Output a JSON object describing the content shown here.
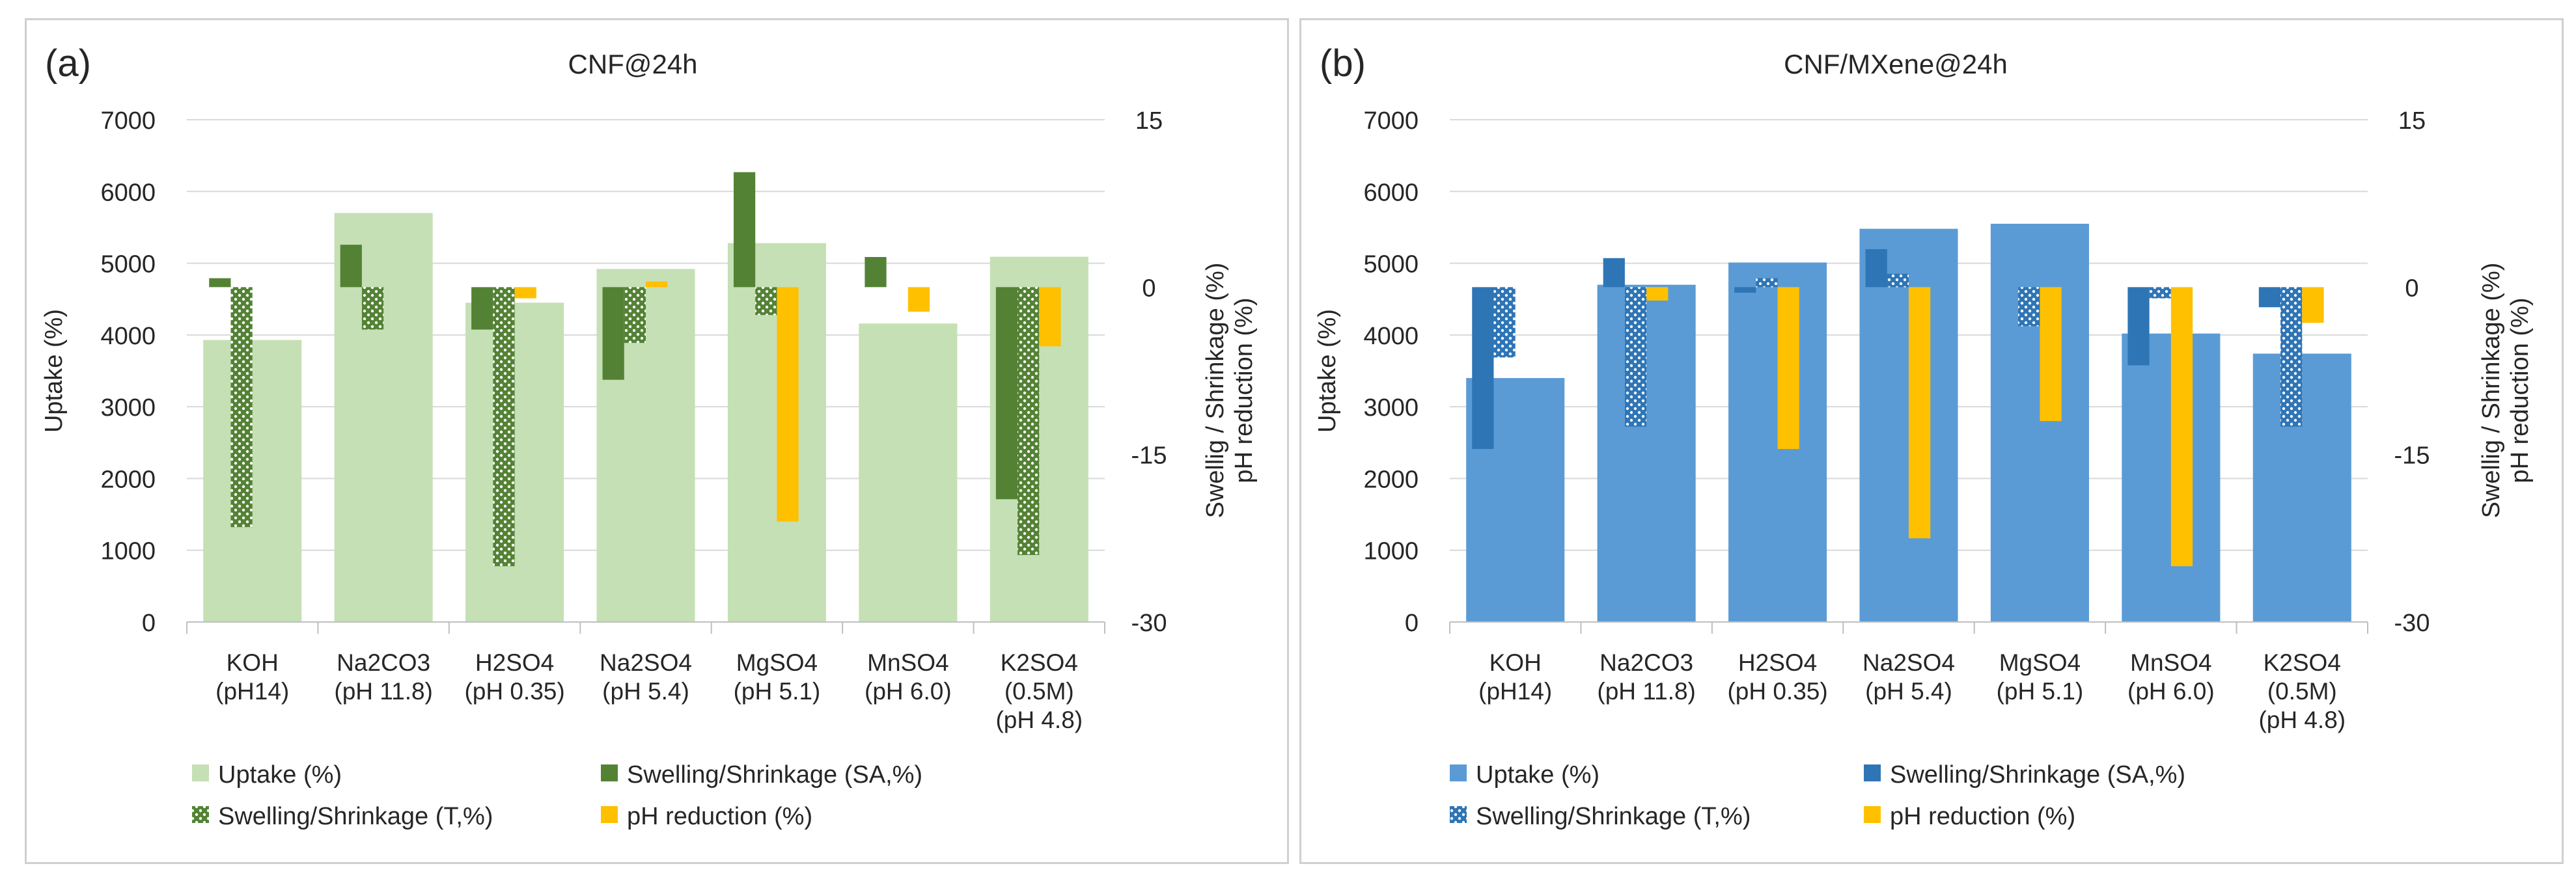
{
  "chart_data": [
    {
      "type": "bar",
      "panel_label": "(a)",
      "title": "CNF@24h",
      "ylabel": "Uptake (%)",
      "y2label_lines": [
        "Swellig / Shrinkage (%)",
        "pH reduction (%)"
      ],
      "ylim": [
        0,
        7000
      ],
      "yticks": [
        0,
        1000,
        2000,
        3000,
        4000,
        5000,
        6000,
        7000
      ],
      "y2lim": [
        -30,
        15
      ],
      "y2ticks": [
        -30,
        -15,
        0,
        15
      ],
      "categories": [
        [
          "KOH",
          "(pH14)"
        ],
        [
          "Na2CO3",
          "(pH 11.8)"
        ],
        [
          "H2SO4",
          "(pH 0.35)"
        ],
        [
          "Na2SO4",
          "(pH 5.4)"
        ],
        [
          "MgSO4",
          "(pH 5.1)"
        ],
        [
          "MnSO4",
          "(pH 6.0)"
        ],
        [
          "K2SO4",
          "(0.5M)",
          "(pH 4.8)"
        ]
      ],
      "series": [
        {
          "name": "Uptake (%)",
          "axis": "primary",
          "style": "solid",
          "color": "#c5e0b4",
          "values": [
            3930,
            5700,
            4450,
            4920,
            5280,
            4160,
            5090
          ]
        },
        {
          "name": "Swelling/Shrinkage (SA,%)",
          "axis": "secondary",
          "style": "solid",
          "color": "#548235",
          "values": [
            0.8,
            3.8,
            -3.8,
            -8.3,
            10.3,
            2.7,
            -19
          ]
        },
        {
          "name": "Swelling/Shrinkage (T,%)",
          "axis": "secondary",
          "style": "pattern",
          "color": "#548235",
          "values": [
            -21.5,
            -3.8,
            -25,
            -5,
            -2.5,
            null,
            -24
          ]
        },
        {
          "name": "pH reduction (%)",
          "axis": "secondary",
          "style": "solid",
          "color": "#ffc000",
          "values": [
            null,
            null,
            -1,
            0.5,
            -21,
            -2.2,
            -5.3
          ]
        }
      ],
      "legend": [
        "Uptake (%)",
        "Swelling/Shrinkage (SA,%)",
        "Swelling/Shrinkage (T,%)",
        "pH reduction (%)"
      ]
    },
    {
      "type": "bar",
      "panel_label": "(b)",
      "title": "CNF/MXene@24h",
      "ylabel": "Uptake (%)",
      "y2label_lines": [
        "Swellig / Shrinkage (%)",
        "pH reduction (%)"
      ],
      "ylim": [
        0,
        7000
      ],
      "yticks": [
        0,
        1000,
        2000,
        3000,
        4000,
        5000,
        6000,
        7000
      ],
      "y2lim": [
        -30,
        15
      ],
      "y2ticks": [
        -30,
        -15,
        0,
        15
      ],
      "categories": [
        [
          "KOH",
          "(pH14)"
        ],
        [
          "Na2CO3",
          "(pH 11.8)"
        ],
        [
          "H2SO4",
          "(pH 0.35)"
        ],
        [
          "Na2SO4",
          "(pH 5.4)"
        ],
        [
          "MgSO4",
          "(pH 5.1)"
        ],
        [
          "MnSO4",
          "(pH 6.0)"
        ],
        [
          "K2SO4",
          "(0.5M)",
          "(pH 4.8)"
        ]
      ],
      "series": [
        {
          "name": "Uptake (%)",
          "axis": "primary",
          "style": "solid",
          "color": "#5b9bd5",
          "values": [
            3400,
            4700,
            5010,
            5480,
            5550,
            4020,
            3740
          ]
        },
        {
          "name": "Swelling/Shrinkage (SA,%)",
          "axis": "secondary",
          "style": "solid",
          "color": "#2e75b6",
          "values": [
            -14.5,
            2.6,
            -0.5,
            3.4,
            null,
            -7,
            -1.8
          ]
        },
        {
          "name": "Swelling/Shrinkage (T,%)",
          "axis": "secondary",
          "style": "pattern",
          "color": "#2e75b6",
          "values": [
            -6.3,
            -12.5,
            0.8,
            1.2,
            -3.5,
            -1,
            -12.5
          ]
        },
        {
          "name": "pH reduction (%)",
          "axis": "secondary",
          "style": "solid",
          "color": "#ffc000",
          "values": [
            null,
            -1.2,
            -14.5,
            -22.5,
            -12,
            -25,
            -3.2
          ]
        }
      ],
      "legend": [
        "Uptake (%)",
        "Swelling/Shrinkage (SA,%)",
        "Swelling/Shrinkage (T,%)",
        "pH reduction (%)"
      ]
    }
  ]
}
